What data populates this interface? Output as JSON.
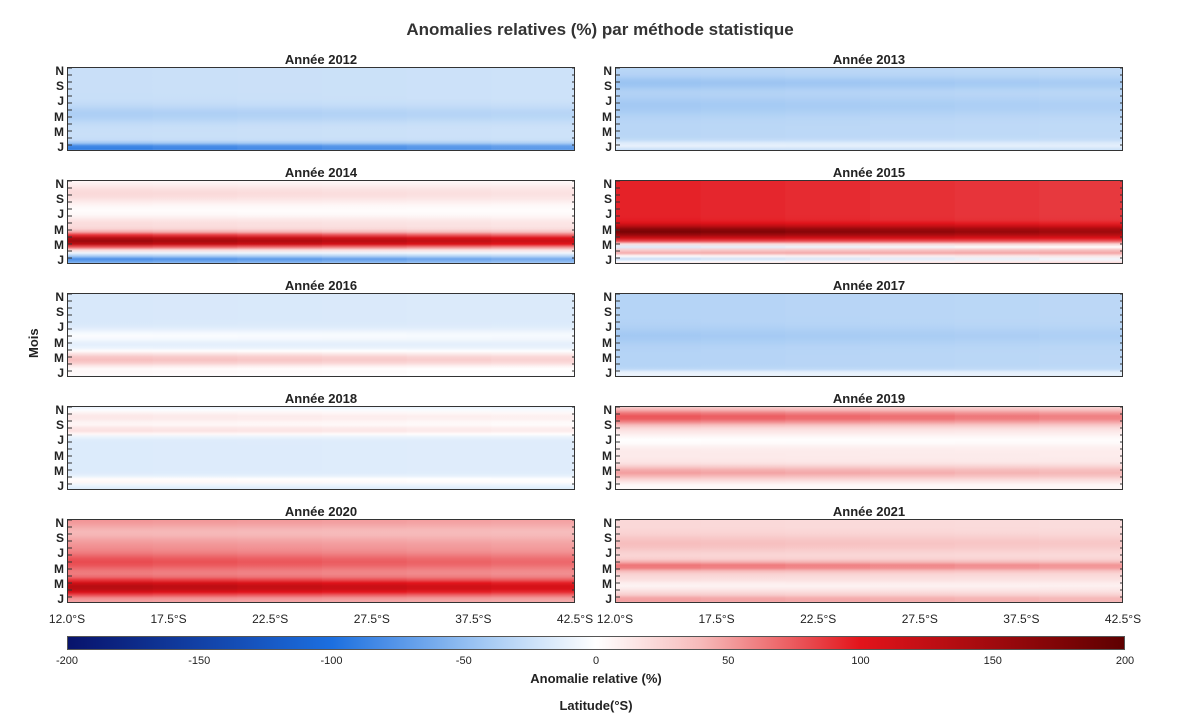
{
  "chart_data": {
    "type": "heatmap",
    "title": "Anomalies relatives (%) par méthode statistique",
    "ylabel": "Mois",
    "xlabel": "Latitude(°S)",
    "month_ticks": [
      "N",
      "S",
      "J",
      "M",
      "M",
      "J"
    ],
    "latitude_ticks": [
      "12.0°S",
      "17.5°S",
      "22.5°S",
      "27.5°S",
      "37.5°S",
      "42.5°S"
    ],
    "latitude_range": [
      12.0,
      42.5
    ],
    "colorbar": {
      "label": "Anomalie relative (%)",
      "ticks": [
        "-200",
        "-150",
        "-100",
        "-50",
        "0",
        "50",
        "100",
        "150",
        "200"
      ],
      "range": [
        -200,
        200
      ],
      "colors": {
        "min": "#08136b",
        "neg_mid": "#1c6fe0",
        "neg_light": "#a8ccf4",
        "zero": "#ffffff",
        "pos_light": "#f6b9b9",
        "pos_mid": "#e3141b",
        "max": "#5e0000"
      }
    },
    "panels": [
      {
        "title": "Année 2012",
        "base": -25,
        "bands": [
          {
            "m": 0.45,
            "w": 0.1,
            "v": -13
          },
          {
            "m": 0.05,
            "w": 0.05,
            "v": -70
          }
        ]
      },
      {
        "title": "Année 2013",
        "base": -32,
        "bands": [
          {
            "m": 0.82,
            "w": 0.08,
            "v": -14
          },
          {
            "m": 0.55,
            "w": 0.12,
            "v": -10
          },
          {
            "m": 0.08,
            "w": 0.05,
            "v": 22
          }
        ]
      },
      {
        "title": "Année 2014",
        "base": 0,
        "bands": [
          {
            "m": 0.85,
            "w": 0.12,
            "v": 22
          },
          {
            "m": 0.5,
            "w": 0.08,
            "v": 18
          },
          {
            "m": 0.28,
            "w": 0.1,
            "v": 160
          },
          {
            "m": 0.18,
            "w": 0.08,
            "v": -35
          },
          {
            "m": 0.06,
            "w": 0.05,
            "v": -80
          }
        ]
      },
      {
        "title": "Année 2015",
        "base": 95,
        "bands": [
          {
            "m": 0.4,
            "w": 0.07,
            "v": 85
          },
          {
            "m": 0.22,
            "w": 0.05,
            "v": -110
          },
          {
            "m": 0.07,
            "w": 0.07,
            "v": -120
          }
        ]
      },
      {
        "title": "Année 2016",
        "base": -18,
        "bands": [
          {
            "m": 0.5,
            "w": 0.08,
            "v": 16
          },
          {
            "m": 0.22,
            "w": 0.1,
            "v": 55
          },
          {
            "m": 0.05,
            "w": 0.05,
            "v": 20
          }
        ]
      },
      {
        "title": "Année 2017",
        "base": -34,
        "bands": [
          {
            "m": 0.5,
            "w": 0.1,
            "v": -8
          },
          {
            "m": 0.05,
            "w": 0.04,
            "v": 30
          }
        ]
      },
      {
        "title": "Année 2018",
        "base": -16,
        "bands": [
          {
            "m": 0.88,
            "w": 0.1,
            "v": 30
          },
          {
            "m": 0.72,
            "w": 0.06,
            "v": 32
          },
          {
            "m": 0.12,
            "w": 0.05,
            "v": 22
          }
        ]
      },
      {
        "title": "Année 2019",
        "base": 12,
        "bands": [
          {
            "m": 0.88,
            "w": 0.1,
            "v": 65
          },
          {
            "m": 0.6,
            "w": 0.07,
            "v": -12
          },
          {
            "m": 0.22,
            "w": 0.08,
            "v": 38
          },
          {
            "m": 0.05,
            "w": 0.05,
            "v": -10
          }
        ]
      },
      {
        "title": "Année 2020",
        "base": 55,
        "bands": [
          {
            "m": 0.85,
            "w": 0.1,
            "v": -15
          },
          {
            "m": 0.5,
            "w": 0.1,
            "v": 25
          },
          {
            "m": 0.2,
            "w": 0.09,
            "v": 80
          },
          {
            "m": 0.05,
            "w": 0.05,
            "v": -10
          }
        ]
      },
      {
        "title": "Année 2021",
        "base": 22,
        "bands": [
          {
            "m": 0.72,
            "w": 0.1,
            "v": 15
          },
          {
            "m": 0.45,
            "w": 0.06,
            "v": 45
          },
          {
            "m": 0.22,
            "w": 0.06,
            "v": -15
          },
          {
            "m": 0.05,
            "w": 0.05,
            "v": 30
          }
        ]
      }
    ]
  }
}
